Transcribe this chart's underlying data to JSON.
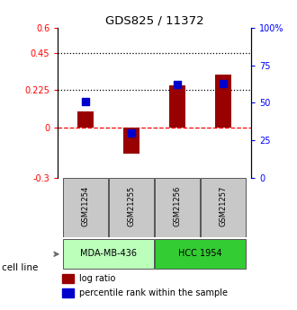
{
  "title": "GDS825 / 11372",
  "samples": [
    "GSM21254",
    "GSM21255",
    "GSM21256",
    "GSM21257"
  ],
  "log_ratio": [
    0.1,
    -0.155,
    0.255,
    0.32
  ],
  "percentile_rank": [
    51,
    30,
    62,
    63
  ],
  "cell_lines": [
    {
      "label": "MDA-MB-436",
      "samples": [
        0,
        1
      ],
      "color": "#bbffbb"
    },
    {
      "label": "HCC 1954",
      "samples": [
        2,
        3
      ],
      "color": "#33cc33"
    }
  ],
  "bar_color": "#990000",
  "dot_color": "#0000cc",
  "ylim_left": [
    -0.3,
    0.6
  ],
  "ylim_right": [
    0,
    100
  ],
  "yticks_left": [
    -0.3,
    0.0,
    0.225,
    0.45,
    0.6
  ],
  "ytick_labels_left": [
    "-0.3",
    "0",
    "0.225",
    "0.45",
    "0.6"
  ],
  "yticks_right": [
    0,
    25,
    50,
    75,
    100
  ],
  "ytick_labels_right": [
    "0",
    "25",
    "50",
    "75",
    "100%"
  ],
  "hline_dotted1": 0.225,
  "hline_dotted2": 0.45,
  "hline_dashed": 0.0,
  "bar_width": 0.35,
  "dot_size": 40,
  "legend_labels": [
    "log ratio",
    "percentile rank within the sample"
  ],
  "cell_line_label": "cell line",
  "bg_color": "#ffffff"
}
